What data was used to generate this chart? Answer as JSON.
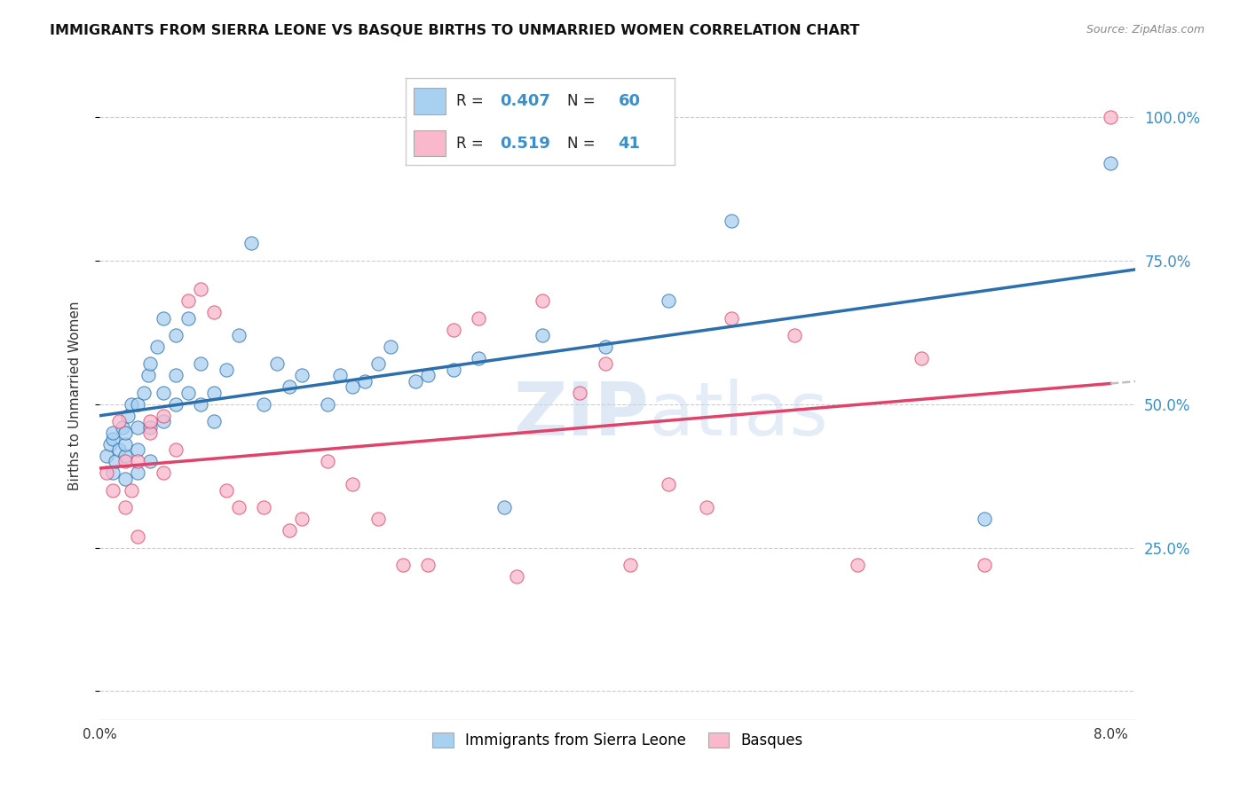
{
  "title": "IMMIGRANTS FROM SIERRA LEONE VS BASQUE BIRTHS TO UNMARRIED WOMEN CORRELATION CHART",
  "source": "Source: ZipAtlas.com",
  "ylabel": "Births to Unmarried Women",
  "R_blue": 0.407,
  "N_blue": 60,
  "R_pink": 0.519,
  "N_pink": 41,
  "color_blue": "#a8d0f0",
  "color_pink": "#f9b8cc",
  "trend_blue": "#2c6fad",
  "trend_pink": "#e0436a",
  "watermark_color": "#c5d8ee",
  "blue_dots_x": [
    0.0005,
    0.0008,
    0.001,
    0.001,
    0.001,
    0.0012,
    0.0015,
    0.0018,
    0.002,
    0.002,
    0.002,
    0.002,
    0.0022,
    0.0025,
    0.003,
    0.003,
    0.003,
    0.003,
    0.0035,
    0.0038,
    0.004,
    0.004,
    0.004,
    0.0045,
    0.005,
    0.005,
    0.005,
    0.006,
    0.006,
    0.006,
    0.007,
    0.007,
    0.008,
    0.008,
    0.009,
    0.009,
    0.01,
    0.011,
    0.012,
    0.013,
    0.014,
    0.015,
    0.016,
    0.018,
    0.019,
    0.02,
    0.021,
    0.022,
    0.023,
    0.025,
    0.026,
    0.028,
    0.03,
    0.032,
    0.035,
    0.04,
    0.045,
    0.05,
    0.07,
    0.08
  ],
  "blue_dots_y": [
    0.41,
    0.43,
    0.38,
    0.44,
    0.45,
    0.4,
    0.42,
    0.46,
    0.37,
    0.41,
    0.43,
    0.45,
    0.48,
    0.5,
    0.38,
    0.42,
    0.46,
    0.5,
    0.52,
    0.55,
    0.4,
    0.46,
    0.57,
    0.6,
    0.47,
    0.52,
    0.65,
    0.5,
    0.55,
    0.62,
    0.52,
    0.65,
    0.5,
    0.57,
    0.47,
    0.52,
    0.56,
    0.62,
    0.78,
    0.5,
    0.57,
    0.53,
    0.55,
    0.5,
    0.55,
    0.53,
    0.54,
    0.57,
    0.6,
    0.54,
    0.55,
    0.56,
    0.58,
    0.32,
    0.62,
    0.6,
    0.68,
    0.82,
    0.3,
    0.92
  ],
  "pink_dots_x": [
    0.0005,
    0.001,
    0.0015,
    0.002,
    0.002,
    0.0025,
    0.003,
    0.003,
    0.004,
    0.004,
    0.005,
    0.005,
    0.006,
    0.007,
    0.008,
    0.009,
    0.01,
    0.011,
    0.013,
    0.015,
    0.016,
    0.018,
    0.02,
    0.022,
    0.024,
    0.026,
    0.028,
    0.03,
    0.033,
    0.035,
    0.038,
    0.04,
    0.042,
    0.045,
    0.048,
    0.05,
    0.055,
    0.06,
    0.065,
    0.07,
    0.08
  ],
  "pink_dots_y": [
    0.38,
    0.35,
    0.47,
    0.32,
    0.4,
    0.35,
    0.27,
    0.4,
    0.45,
    0.47,
    0.38,
    0.48,
    0.42,
    0.68,
    0.7,
    0.66,
    0.35,
    0.32,
    0.32,
    0.28,
    0.3,
    0.4,
    0.36,
    0.3,
    0.22,
    0.22,
    0.63,
    0.65,
    0.2,
    0.68,
    0.52,
    0.57,
    0.22,
    0.36,
    0.32,
    0.65,
    0.62,
    0.22,
    0.58,
    0.22,
    1.0
  ],
  "xlim": [
    0.0,
    0.082
  ],
  "ylim": [
    -0.05,
    1.08
  ],
  "ytick_values": [
    0.0,
    0.25,
    0.5,
    0.75,
    1.0
  ],
  "ytick_labels": [
    "",
    "25.0%",
    "50.0%",
    "75.0%",
    "100.0%"
  ],
  "xtick_positions": [
    0.0,
    0.08
  ],
  "xtick_labels": [
    "0.0%",
    "8.0%"
  ]
}
